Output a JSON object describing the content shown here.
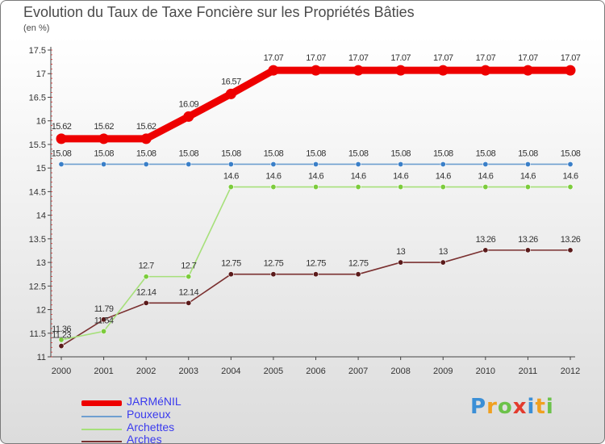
{
  "page": {
    "title": "Evolution du Taux de Taxe Foncière sur les Propriétés Bâties",
    "unit_label": "(en %)"
  },
  "brand": {
    "letters": [
      "P",
      "r",
      "o",
      "x",
      "i",
      "t",
      "i"
    ],
    "colors": [
      "#3b8fd6",
      "#f0a020",
      "#6cc24a",
      "#e33b2e",
      "#3b8fd6",
      "#f0a020",
      "#6cc24a"
    ]
  },
  "chart_data": {
    "type": "line",
    "title": "Evolution du Taux de Taxe Foncière sur les Propriétés Bâties",
    "ylabel": "(en %)",
    "xlabel": "",
    "categories": [
      "2000",
      "2001",
      "2002",
      "2003",
      "2004",
      "2005",
      "2006",
      "2007",
      "2008",
      "2009",
      "2010",
      "2011",
      "2012"
    ],
    "ylim": [
      11,
      17.5
    ],
    "yticks": [
      "11",
      "11.5",
      "12",
      "12.5",
      "13",
      "13.5",
      "14",
      "14.5",
      "15",
      "15.5",
      "16",
      "16.5",
      "17",
      "17.5"
    ],
    "grid": false,
    "legend_position": "bottom-left",
    "series": [
      {
        "name": "JARMéNIL",
        "color": "#ee0000",
        "emphasis": true,
        "values": [
          15.62,
          15.62,
          15.62,
          16.09,
          16.57,
          17.07,
          17.07,
          17.07,
          17.07,
          17.07,
          17.07,
          17.07,
          17.07
        ],
        "labels": [
          "15.62",
          "15.62",
          "15.62",
          "16.09",
          "16.57",
          "17.07",
          "17.07",
          "17.07",
          "17.07",
          "17.07",
          "17.07",
          "17.07",
          "17.07"
        ]
      },
      {
        "name": "Pouxeux",
        "color": "#6f9fd0",
        "point_color": "#3a7fc8",
        "values": [
          15.08,
          15.08,
          15.08,
          15.08,
          15.08,
          15.08,
          15.08,
          15.08,
          15.08,
          15.08,
          15.08,
          15.08,
          15.08
        ],
        "labels": [
          "15.08",
          "15.08",
          "15.08",
          "15.08",
          "15.08",
          "15.08",
          "15.08",
          "15.08",
          "15.08",
          "15.08",
          "15.08",
          "15.08",
          "15.08"
        ]
      },
      {
        "name": "Archettes",
        "color": "#a6e07a",
        "point_color": "#7ccc3c",
        "values": [
          11.36,
          11.54,
          12.7,
          12.7,
          14.6,
          14.6,
          14.6,
          14.6,
          14.6,
          14.6,
          14.6,
          14.6,
          14.6
        ],
        "labels": [
          "11.36",
          "11.54",
          "12.7",
          "12.7",
          "14.6",
          "14.6",
          "14.6",
          "14.6",
          "14.6",
          "14.6",
          "14.6",
          "14.6",
          "14.6"
        ]
      },
      {
        "name": "Arches",
        "color": "#7a3030",
        "point_color": "#5a1a1a",
        "values": [
          11.23,
          11.79,
          12.14,
          12.14,
          12.75,
          12.75,
          12.75,
          12.75,
          13,
          13,
          13.26,
          13.26,
          13.26
        ],
        "labels": [
          "11.23",
          "11.79",
          "12.14",
          "12.14",
          "12.75",
          "12.75",
          "12.75",
          "12.75",
          "13",
          "13",
          "13.26",
          "13.26",
          "13.26"
        ]
      }
    ]
  }
}
